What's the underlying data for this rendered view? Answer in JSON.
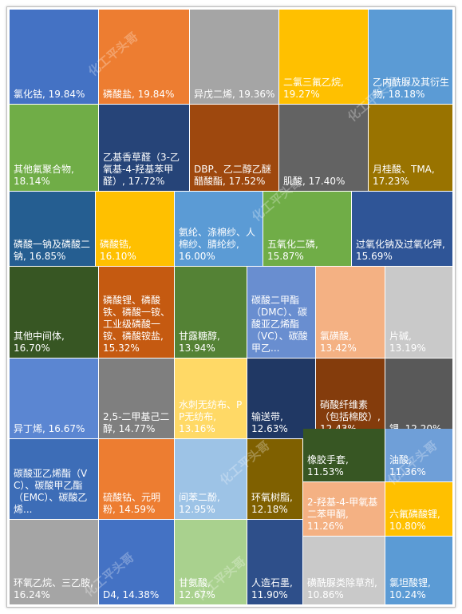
{
  "watermark": "化工平头哥",
  "chart_data": {
    "type": "treemap",
    "unit": "%",
    "items": [
      {
        "name": "氯化钴",
        "value": 19.84,
        "color": "#4472c4",
        "text": "#ffffff"
      },
      {
        "name": "磷酸盐",
        "value": 19.84,
        "color": "#ed7d31",
        "text": "#ffffff"
      },
      {
        "name": "异戊二烯",
        "value": 19.36,
        "color": "#a5a5a5",
        "text": "#ffffff"
      },
      {
        "name": "二氯三氟乙烷",
        "value": 19.27,
        "color": "#ffc000",
        "text": "#ffffff"
      },
      {
        "name": "乙内酰脲及其衍生物",
        "value": 18.18,
        "color": "#5b9bd5",
        "text": "#ffffff"
      },
      {
        "name": "其他氟聚合物",
        "value": 18.14,
        "color": "#70ad47",
        "text": "#ffffff"
      },
      {
        "name": "乙基香草醛（3-乙氧基-4-羟基苯甲醛）",
        "value": 17.72,
        "color": "#264478",
        "text": "#ffffff"
      },
      {
        "name": "DBP、乙二醇乙醚醋酸酯",
        "value": 17.52,
        "color": "#9e480e",
        "text": "#ffffff"
      },
      {
        "name": "肌酸",
        "value": 17.4,
        "color": "#636363",
        "text": "#ffffff"
      },
      {
        "name": "月桂酸、TMA",
        "value": 17.23,
        "color": "#997300",
        "text": "#ffffff"
      },
      {
        "name": "磷酸一钠及磷酸二钠",
        "value": 16.85,
        "color": "#255e91",
        "text": "#ffffff"
      },
      {
        "name": "磷酸锆",
        "value": 16.1,
        "color": "#ffc000",
        "text": "#ffffff"
      },
      {
        "name": "氨纶、涤棉纱、人棉纱、腈纶纱",
        "value": 16.0,
        "color": "#5b9bd5",
        "text": "#ffffff"
      },
      {
        "name": "五氧化二磷",
        "value": 15.87,
        "color": "#70ad47",
        "text": "#ffffff"
      },
      {
        "name": "过氧化钠及过氧化钾",
        "value": 15.69,
        "color": "#2f5597",
        "text": "#ffffff"
      },
      {
        "name": "其他中间体",
        "value": 16.7,
        "color": "#375623",
        "text": "#ffffff"
      },
      {
        "name": "磷酸锂、磷酸铁、磷酸一铵、工业级磷酸一铵、磷酸铵盐",
        "value": 15.32,
        "color": "#c55a11",
        "text": "#ffffff"
      },
      {
        "name": "甘露糖醇",
        "value": 13.94,
        "color": "#548235",
        "text": "#ffffff"
      },
      {
        "name": "碳酸二甲酯（DMC）、碳酸亚乙烯酯（VC）、碳酸甲乙...",
        "value": null,
        "color": "#698ed0",
        "text": "#ffffff"
      },
      {
        "name": "氯磺酸",
        "value": 13.42,
        "color": "#f4b183",
        "text": "#ffffff"
      },
      {
        "name": "片碱",
        "value": 13.19,
        "color": "#c9c9c9",
        "text": "#ffffff"
      },
      {
        "name": "异丁烯",
        "value": 16.67,
        "color": "#5b86d2",
        "text": "#ffffff"
      },
      {
        "name": "2,5-二甲基己二醇",
        "value": 14.77,
        "color": "#7f7f7f",
        "text": "#ffffff"
      },
      {
        "name": "水刺无纺布、PP无纺布",
        "value": 13.16,
        "color": "#ffd966",
        "text": "#ffffff"
      },
      {
        "name": "输送带",
        "value": 12.63,
        "color": "#203864",
        "text": "#ffffff"
      },
      {
        "name": "硝酸纤维素（包括棉胶）",
        "value": 12.43,
        "color": "#843c0c",
        "text": "#ffffff"
      },
      {
        "name": "锂",
        "value": 12.2,
        "color": "#595959",
        "text": "#ffffff"
      },
      {
        "name": "碳酸亚乙烯酯（VC）、碳酸甲乙酯（EMC）、碳酸乙烯...",
        "value": null,
        "color": "#3d6db7",
        "text": "#ffffff"
      },
      {
        "name": "硫酸钴、元明粉",
        "value": 14.59,
        "color": "#ed7d31",
        "text": "#ffffff"
      },
      {
        "name": "间苯二酚",
        "value": 12.95,
        "color": "#9dc3e6",
        "text": "#ffffff"
      },
      {
        "name": "环氧树脂",
        "value": 12.18,
        "color": "#7f6000",
        "text": "#ffffff"
      },
      {
        "name": "橡胶手套",
        "value": 11.53,
        "color": "#375623",
        "text": "#ffffff"
      },
      {
        "name": "油酸",
        "value": 11.36,
        "color": "#6f9fd8",
        "text": "#ffffff"
      },
      {
        "name": "2-羟基-4-甲氧基二苯甲酮",
        "value": 11.26,
        "color": "#f4b183",
        "text": "#ffffff"
      },
      {
        "name": "六氟磷酸锂",
        "value": 10.8,
        "color": "#ffc000",
        "text": "#ffffff"
      },
      {
        "name": "环氧乙烷、三乙胺",
        "value": 16.24,
        "color": "#a5a5a5",
        "text": "#ffffff"
      },
      {
        "name": "D4",
        "value": 14.38,
        "color": "#4472c4",
        "text": "#ffffff"
      },
      {
        "name": "甘氨酸",
        "value": 12.67,
        "color": "#a9d18e",
        "text": "#ffffff"
      },
      {
        "name": "人造石墨",
        "value": 11.9,
        "color": "#2e4f8a",
        "text": "#ffffff"
      },
      {
        "name": "磺酰脲类除草剂",
        "value": 10.86,
        "color": "#c9c9c9",
        "text": "#ffffff"
      },
      {
        "name": "氯坦酸锂",
        "value": 10.24,
        "color": "#5b9bd5",
        "text": "#ffffff"
      }
    ]
  }
}
